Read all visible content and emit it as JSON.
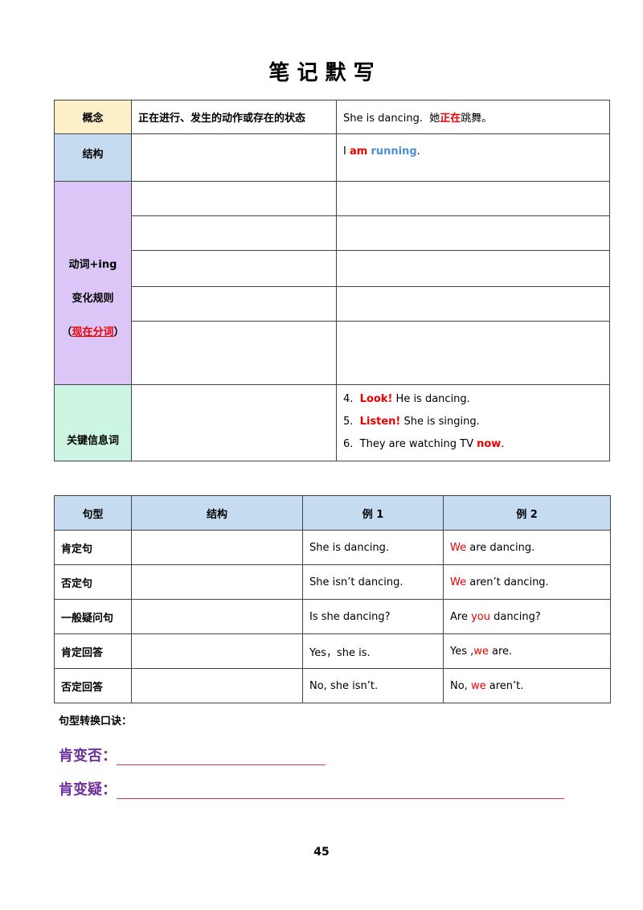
{
  "title": "笔 记 默 写",
  "table1": {
    "concept": {
      "label": "概念",
      "definition": "正在进行、发生的动作或存在的状态",
      "example": [
        "She is dancing.  她",
        "正在",
        "跳舞。"
      ]
    },
    "structure": {
      "label": "结构",
      "example": [
        "I ",
        "am",
        " ",
        "running",
        "."
      ]
    },
    "rule": {
      "label": [
        "动词+ing",
        "变化规则",
        "（",
        "现在分词",
        "）"
      ]
    },
    "keywords": {
      "label": "关键信息词",
      "examples": [
        [
          "4.  ",
          "Look!",
          " He is dancing."
        ],
        [
          "5.  ",
          "Listen!",
          " She is singing."
        ],
        [
          "6.  They are watching TV ",
          "now",
          "."
        ]
      ]
    }
  },
  "table2": {
    "headers": [
      "句型",
      "结构",
      "例 1",
      "例 2"
    ],
    "rows": [
      {
        "type": "肯定句",
        "example1": "She is dancing.",
        "example2": [
          "We",
          " are dancing."
        ]
      },
      {
        "type": "否定句",
        "example1": "She isn’t dancing.",
        "example2": [
          "We",
          " aren’t dancing."
        ]
      },
      {
        "type": "一般疑问句",
        "example1": "Is she dancing?",
        "example2": [
          "Are ",
          "you",
          " dancing?"
        ]
      },
      {
        "type": "肯定回答",
        "example1": "Yes，she is.",
        "example2": [
          "Yes ,",
          "we",
          " are."
        ]
      },
      {
        "type": "否定回答",
        "example1": "No, she isn’t.",
        "example2": [
          "No, ",
          "we",
          " aren’t."
        ]
      }
    ]
  },
  "mnemonic": {
    "title": "句型转换口诀：",
    "lines": [
      "肯变否：",
      "肯变疑："
    ]
  },
  "page_number": "45"
}
